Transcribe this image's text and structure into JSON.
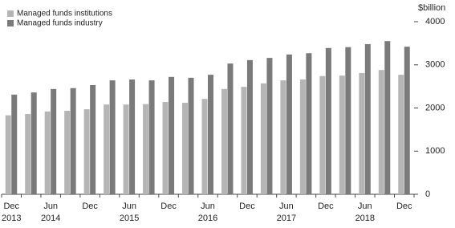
{
  "chart_data": {
    "type": "bar",
    "categories": [
      "Dec",
      null,
      "Jun",
      null,
      "Dec",
      null,
      "Jun",
      null,
      "Dec",
      null,
      "Jun",
      null,
      "Dec",
      null,
      "Jun",
      null,
      "Dec",
      null,
      "Jun",
      null,
      "Dec"
    ],
    "category_years": [
      "2013",
      null,
      "2014",
      null,
      null,
      null,
      "2015",
      null,
      null,
      null,
      "2016",
      null,
      null,
      null,
      "2017",
      null,
      null,
      null,
      "2018",
      null,
      null
    ],
    "series": [
      {
        "name": "Managed funds institutions",
        "color": "#b5b5b5",
        "values": [
          1830,
          1860,
          1920,
          1935,
          1970,
          2080,
          2080,
          2090,
          2140,
          2120,
          2210,
          2440,
          2490,
          2570,
          2640,
          2660,
          2740,
          2750,
          2810,
          2880,
          2770
        ]
      },
      {
        "name": "Managed funds industry",
        "color": "#7a7a7a",
        "values": [
          2310,
          2360,
          2440,
          2460,
          2530,
          2640,
          2660,
          2640,
          2720,
          2700,
          2770,
          3030,
          3110,
          3160,
          3240,
          3270,
          3390,
          3410,
          3480,
          3550,
          3420
        ]
      }
    ],
    "y_unit": "$billion",
    "ylim": [
      0,
      4000
    ],
    "yticks": [
      0,
      1000,
      2000,
      3000,
      4000
    ],
    "legend": "top-left"
  }
}
